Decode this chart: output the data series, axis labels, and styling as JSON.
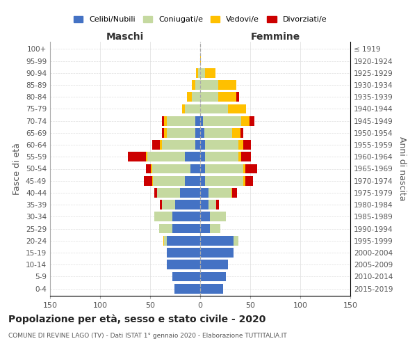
{
  "age_groups": [
    "0-4",
    "5-9",
    "10-14",
    "15-19",
    "20-24",
    "25-29",
    "30-34",
    "35-39",
    "40-44",
    "45-49",
    "50-54",
    "55-59",
    "60-64",
    "65-69",
    "70-74",
    "75-79",
    "80-84",
    "85-89",
    "90-94",
    "95-99",
    "100+"
  ],
  "birth_years": [
    "2015-2019",
    "2010-2014",
    "2005-2009",
    "2000-2004",
    "1995-1999",
    "1990-1994",
    "1985-1989",
    "1980-1984",
    "1975-1979",
    "1970-1974",
    "1965-1969",
    "1960-1964",
    "1955-1959",
    "1950-1954",
    "1945-1949",
    "1940-1944",
    "1935-1939",
    "1930-1934",
    "1925-1929",
    "1920-1924",
    "≤ 1919"
  ],
  "colors": {
    "celibi": "#4472c4",
    "coniugati": "#c5d9a0",
    "vedovi": "#ffc000",
    "divorziati": "#cc0000"
  },
  "title": "Popolazione per età, sesso e stato civile - 2020",
  "subtitle": "COMUNE DI REVINE LAGO (TV) - Dati ISTAT 1° gennaio 2020 - Elaborazione TUTTITALIA.IT",
  "ylabel_left": "Fasce di età",
  "ylabel_right": "Anni di nascita",
  "xlabel_left": "Maschi",
  "xlabel_right": "Femmine",
  "xlim": 150,
  "legend_labels": [
    "Celibi/Nubili",
    "Coniugati/e",
    "Vedovi/e",
    "Divorziati/e"
  ],
  "m_celibi": [
    26,
    28,
    33,
    33,
    33,
    28,
    28,
    25,
    20,
    15,
    10,
    15,
    5,
    5,
    5,
    0,
    0,
    0,
    0,
    0,
    0
  ],
  "m_coniugati": [
    0,
    0,
    0,
    0,
    3,
    13,
    18,
    13,
    23,
    32,
    38,
    38,
    33,
    28,
    28,
    15,
    8,
    5,
    2,
    0,
    0
  ],
  "m_vedovi": [
    0,
    0,
    0,
    0,
    1,
    0,
    0,
    0,
    0,
    1,
    1,
    1,
    2,
    3,
    3,
    3,
    5,
    3,
    2,
    0,
    0
  ],
  "m_divorziati": [
    0,
    0,
    0,
    0,
    0,
    0,
    0,
    2,
    3,
    8,
    5,
    18,
    8,
    2,
    2,
    0,
    0,
    0,
    0,
    0,
    0
  ],
  "f_nubili": [
    23,
    26,
    28,
    33,
    33,
    10,
    10,
    8,
    8,
    5,
    5,
    5,
    5,
    4,
    3,
    0,
    0,
    0,
    0,
    0,
    0
  ],
  "f_coniugate": [
    0,
    0,
    0,
    0,
    5,
    10,
    16,
    8,
    23,
    38,
    38,
    33,
    33,
    28,
    38,
    28,
    18,
    18,
    5,
    0,
    0
  ],
  "f_vedove": [
    0,
    0,
    0,
    0,
    0,
    0,
    0,
    0,
    1,
    2,
    2,
    3,
    5,
    8,
    8,
    18,
    18,
    18,
    10,
    1,
    0
  ],
  "f_divorziate": [
    0,
    0,
    0,
    0,
    0,
    0,
    0,
    3,
    5,
    8,
    12,
    10,
    8,
    3,
    5,
    0,
    3,
    0,
    0,
    0,
    0
  ]
}
